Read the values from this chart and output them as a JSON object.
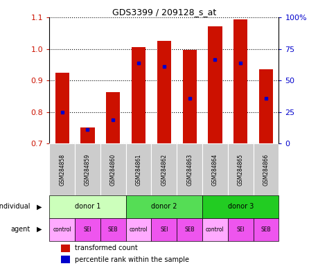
{
  "title": "GDS3399 / 209128_s_at",
  "samples": [
    "GSM284858",
    "GSM284859",
    "GSM284860",
    "GSM284861",
    "GSM284862",
    "GSM284863",
    "GSM284864",
    "GSM284865",
    "GSM284866"
  ],
  "transformed_count": [
    0.925,
    0.752,
    0.862,
    1.005,
    1.025,
    0.997,
    1.072,
    1.093,
    0.935
  ],
  "percentile_rank": [
    0.8,
    0.745,
    0.775,
    0.956,
    0.945,
    0.843,
    0.965,
    0.955,
    0.843
  ],
  "ylim": [
    0.7,
    1.1
  ],
  "yticks": [
    0.7,
    0.8,
    0.9,
    1.0,
    1.1
  ],
  "right_yticks": [
    0,
    25,
    50,
    75,
    100
  ],
  "bar_color": "#cc1100",
  "dot_color": "#0000cc",
  "bar_width": 0.55,
  "individuals": [
    {
      "label": "donor 1",
      "start": 0,
      "end": 3,
      "color": "#ccffbb"
    },
    {
      "label": "donor 2",
      "start": 3,
      "end": 6,
      "color": "#55dd55"
    },
    {
      "label": "donor 3",
      "start": 6,
      "end": 9,
      "color": "#22cc22"
    }
  ],
  "agent_labels": [
    "control",
    "SEI",
    "SEB",
    "control",
    "SEI",
    "SEB",
    "control",
    "SEI",
    "SEB"
  ],
  "control_color": "#ffaaff",
  "sei_seb_color": "#ee55ee",
  "sample_bg": "#cccccc",
  "tick_color_left": "#cc1100",
  "tick_color_right": "#0000cc"
}
